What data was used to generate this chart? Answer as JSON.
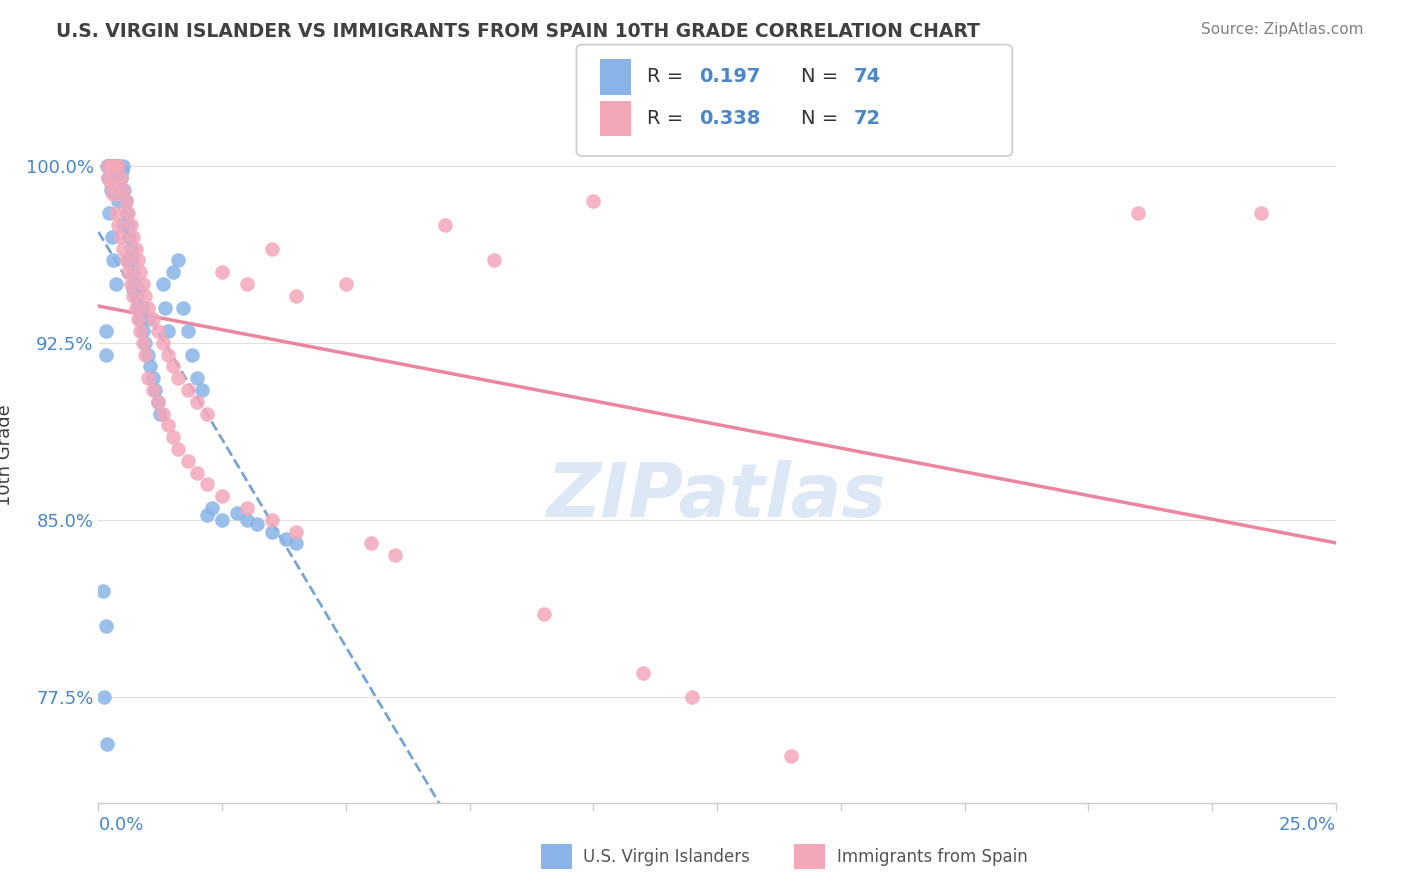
{
  "title": "U.S. VIRGIN ISLANDER VS IMMIGRANTS FROM SPAIN 10TH GRADE CORRELATION CHART",
  "source": "Source: ZipAtlas.com",
  "ylabel": "10th Grade",
  "xlim": [
    0.0,
    25.0
  ],
  "ylim": [
    73.0,
    102.5
  ],
  "color_blue": "#8ab4e8",
  "color_pink": "#f4a7b9",
  "color_blue_line": "#4a86c8",
  "color_pink_line": "#e87090",
  "color_blue_text": "#4a86c8",
  "color_title": "#404040",
  "color_source": "#808080",
  "watermark_color": "#dce8f5",
  "blue_x": [
    0.1,
    0.12,
    0.15,
    0.15,
    0.18,
    0.18,
    0.2,
    0.2,
    0.2,
    0.22,
    0.22,
    0.25,
    0.25,
    0.28,
    0.28,
    0.3,
    0.3,
    0.3,
    0.33,
    0.35,
    0.35,
    0.38,
    0.4,
    0.4,
    0.42,
    0.45,
    0.48,
    0.5,
    0.5,
    0.52,
    0.55,
    0.58,
    0.6,
    0.6,
    0.62,
    0.65,
    0.68,
    0.7,
    0.7,
    0.72,
    0.75,
    0.8,
    0.8,
    0.85,
    0.9,
    0.9,
    0.95,
    1.0,
    1.0,
    1.05,
    1.1,
    1.15,
    1.2,
    1.25,
    1.3,
    1.35,
    1.4,
    1.5,
    1.6,
    1.7,
    1.8,
    1.9,
    2.0,
    2.1,
    2.2,
    2.3,
    2.5,
    2.8,
    3.0,
    3.2,
    3.5,
    3.8,
    4.0,
    0.15
  ],
  "blue_y": [
    82.0,
    77.5,
    80.5,
    93.0,
    75.5,
    100.0,
    100.0,
    100.0,
    99.5,
    98.0,
    100.0,
    99.0,
    100.0,
    97.0,
    100.0,
    96.0,
    100.0,
    100.0,
    100.0,
    95.0,
    100.0,
    100.0,
    98.5,
    100.0,
    100.0,
    99.5,
    99.8,
    97.5,
    100.0,
    99.0,
    98.5,
    98.0,
    96.0,
    97.5,
    97.0,
    96.5,
    96.0,
    94.8,
    95.5,
    95.0,
    94.5,
    94.0,
    94.8,
    93.5,
    93.0,
    94.0,
    92.5,
    92.0,
    93.5,
    91.5,
    91.0,
    90.5,
    90.0,
    89.5,
    95.0,
    94.0,
    93.0,
    95.5,
    96.0,
    94.0,
    93.0,
    92.0,
    91.0,
    90.5,
    85.2,
    85.5,
    85.0,
    85.3,
    85.0,
    84.8,
    84.5,
    84.2,
    84.0,
    92.0
  ],
  "pink_x": [
    0.2,
    0.2,
    0.25,
    0.25,
    0.3,
    0.3,
    0.35,
    0.35,
    0.4,
    0.4,
    0.45,
    0.45,
    0.5,
    0.5,
    0.55,
    0.55,
    0.6,
    0.6,
    0.65,
    0.65,
    0.7,
    0.7,
    0.75,
    0.75,
    0.8,
    0.8,
    0.85,
    0.85,
    0.9,
    0.9,
    0.95,
    0.95,
    1.0,
    1.0,
    1.1,
    1.1,
    1.2,
    1.2,
    1.3,
    1.3,
    1.4,
    1.4,
    1.5,
    1.5,
    1.6,
    1.6,
    1.8,
    1.8,
    2.0,
    2.0,
    2.2,
    2.2,
    2.5,
    2.5,
    3.0,
    3.0,
    3.5,
    3.5,
    4.0,
    4.0,
    5.0,
    5.5,
    6.0,
    7.0,
    8.0,
    9.0,
    10.0,
    11.0,
    12.0,
    14.0,
    21.0,
    23.5
  ],
  "pink_y": [
    100.0,
    99.5,
    100.0,
    99.2,
    100.0,
    98.8,
    100.0,
    98.0,
    100.0,
    97.5,
    99.5,
    97.0,
    99.0,
    96.5,
    98.5,
    96.0,
    98.0,
    95.5,
    97.5,
    95.0,
    97.0,
    94.5,
    96.5,
    94.0,
    96.0,
    93.5,
    95.5,
    93.0,
    95.0,
    92.5,
    94.5,
    92.0,
    94.0,
    91.0,
    93.5,
    90.5,
    93.0,
    90.0,
    92.5,
    89.5,
    92.0,
    89.0,
    91.5,
    88.5,
    91.0,
    88.0,
    90.5,
    87.5,
    90.0,
    87.0,
    89.5,
    86.5,
    95.5,
    86.0,
    95.0,
    85.5,
    96.5,
    85.0,
    94.5,
    84.5,
    95.0,
    84.0,
    83.5,
    97.5,
    96.0,
    81.0,
    98.5,
    78.5,
    77.5,
    75.0,
    98.0,
    98.0
  ]
}
